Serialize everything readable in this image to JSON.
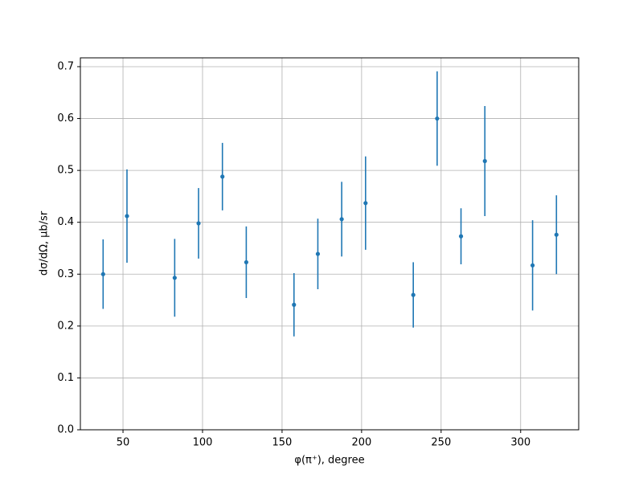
{
  "chart_data": {
    "type": "errorbar",
    "x_label": "φ(π⁺), degree",
    "y_label": "dσ/dΩ, μb/sr",
    "series": [
      {
        "color": "#1f77b4",
        "x": [
          37.5,
          52.5,
          82.5,
          97.5,
          112.5,
          127.5,
          157.5,
          172.5,
          187.5,
          202.5,
          232.5,
          247.5,
          262.5,
          277.5,
          307.5,
          322.5
        ],
        "values": [
          0.3,
          0.412,
          0.293,
          0.398,
          0.488,
          0.323,
          0.241,
          0.339,
          0.406,
          0.437,
          0.26,
          0.6,
          0.373,
          0.518,
          0.317,
          0.376
        ],
        "errors": [
          0.067,
          0.09,
          0.075,
          0.068,
          0.065,
          0.069,
          0.061,
          0.068,
          0.072,
          0.09,
          0.063,
          0.091,
          0.054,
          0.106,
          0.087,
          0.076
        ]
      }
    ],
    "xlim": [
      23.2,
      336.5
    ],
    "ylim": [
      0,
      0.717
    ],
    "xticks": [
      50,
      100,
      150,
      200,
      250,
      300
    ],
    "yticks": [
      {
        "value": 0,
        "label": "0.0"
      },
      0.1,
      0.2,
      0.3,
      0.4,
      0.5,
      0.6,
      0.7
    ],
    "grid": true
  }
}
